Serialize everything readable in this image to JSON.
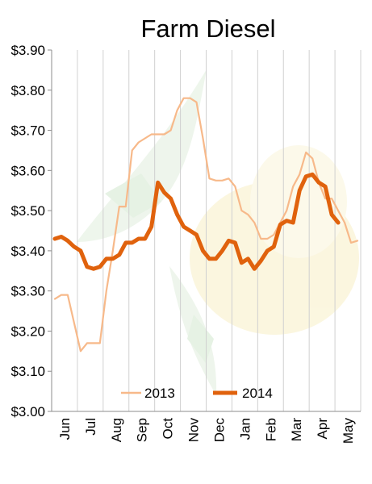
{
  "chart_data": {
    "type": "line",
    "title": "Farm Diesel",
    "ylim": [
      3.0,
      3.9
    ],
    "y_ticks": [
      "$3.00",
      "$3.10",
      "$3.20",
      "$3.30",
      "$3.40",
      "$3.50",
      "$3.60",
      "$3.70",
      "$3.80",
      "$3.90"
    ],
    "x_ticks": [
      "Jun",
      "Jul",
      "Aug",
      "Sep",
      "Oct",
      "Nov",
      "Dec",
      "Jan",
      "Feb",
      "Mar",
      "Apr",
      "May"
    ],
    "x_unit": "week index (4 per month, starting early June)",
    "grid": "vertical only",
    "legend_position": "bottom-center",
    "series": [
      {
        "name": "2013",
        "color": "#f7b98a",
        "x": [
          0,
          1,
          2,
          3,
          4,
          5,
          6,
          7,
          8,
          9,
          10,
          11,
          12,
          13,
          14,
          15,
          16,
          17,
          18,
          19,
          20,
          21,
          22,
          23,
          24,
          25,
          26,
          27,
          28,
          29,
          30,
          31,
          32,
          33,
          34,
          35,
          36,
          37,
          38,
          39,
          40,
          41,
          42,
          43,
          44,
          45,
          46,
          47
        ],
        "values": [
          3.28,
          3.29,
          3.29,
          3.22,
          3.15,
          3.17,
          3.17,
          3.17,
          3.3,
          3.4,
          3.51,
          3.51,
          3.65,
          3.67,
          3.68,
          3.69,
          3.69,
          3.69,
          3.7,
          3.75,
          3.78,
          3.78,
          3.77,
          3.68,
          3.58,
          3.575,
          3.575,
          3.58,
          3.56,
          3.5,
          3.49,
          3.47,
          3.43,
          3.43,
          3.44,
          3.47,
          3.5,
          3.56,
          3.59,
          3.645,
          3.63,
          3.57,
          3.53,
          3.53,
          3.5,
          3.47,
          3.42,
          3.425
        ]
      },
      {
        "name": "2014",
        "color": "#e0620d",
        "x": [
          0,
          1,
          2,
          3,
          4,
          5,
          6,
          7,
          8,
          9,
          10,
          11,
          12,
          13,
          14,
          15,
          16,
          17,
          18,
          19,
          20,
          21,
          22,
          23,
          24,
          25,
          26,
          27,
          28,
          29,
          30,
          31,
          32,
          33,
          34,
          35,
          36,
          37,
          38,
          39,
          40,
          41,
          42,
          43,
          44
        ],
        "values": [
          3.43,
          3.435,
          3.425,
          3.41,
          3.4,
          3.36,
          3.355,
          3.36,
          3.38,
          3.38,
          3.39,
          3.42,
          3.42,
          3.43,
          3.43,
          3.46,
          3.57,
          3.545,
          3.53,
          3.49,
          3.46,
          3.45,
          3.44,
          3.4,
          3.38,
          3.38,
          3.4,
          3.425,
          3.42,
          3.37,
          3.38,
          3.355,
          3.375,
          3.4,
          3.41,
          3.465,
          3.475,
          3.47,
          3.55,
          3.585,
          3.59,
          3.57,
          3.56,
          3.49,
          3.47
        ]
      }
    ]
  }
}
